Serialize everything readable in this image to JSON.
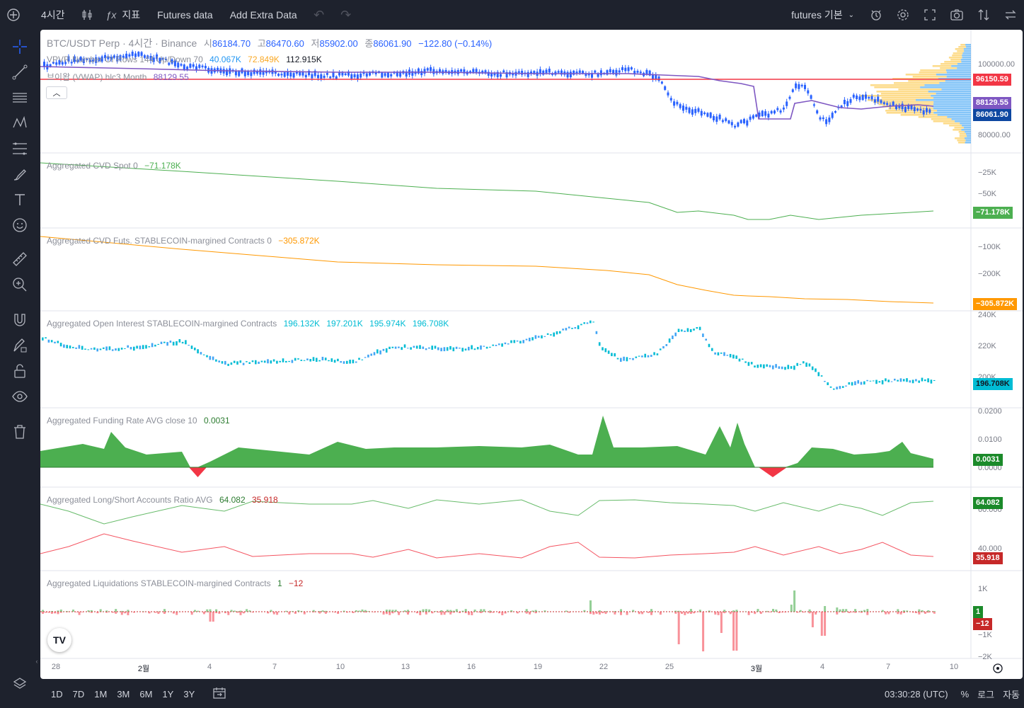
{
  "toolbar": {
    "add_symbol": "+",
    "interval": "4시간",
    "indicators_label": "지표",
    "futures_data": "Futures data",
    "add_extra_data": "Add Extra Data",
    "layout_name": "futures 기본"
  },
  "symbol": {
    "title": "BTC/USDT Perp · 4시간 · Binance",
    "open_label": "시",
    "open": "86184.70",
    "high_label": "고",
    "high": "86470.60",
    "low_label": "저",
    "low": "85902.00",
    "close_label": "종",
    "close": "86061.90",
    "change": "−122.80 (−0.14%)"
  },
  "overlays": {
    "vpvr_label": "VPVR Number Of Rows 144 Up/Down 70",
    "vpvr_up": "40.067K",
    "vpvr_down": "72.849K",
    "vpvr_total": "112.915K",
    "vwap_label": "브이왑 (VWAP) hlc3 Month",
    "vwap_value": "88129.55"
  },
  "price_axis": {
    "ticks": [
      "100000.00",
      "80000.00"
    ],
    "red_line_price": "96150.59",
    "vwap_price": "88129.55",
    "last_price": "86061.90"
  },
  "panes": {
    "cvd_spot": {
      "label": "Aggregated CVD Spot 0",
      "value": "−71.178K",
      "ticks": [
        "−25K",
        "−50K"
      ],
      "badge": "−71.178K"
    },
    "cvd_futs": {
      "label": "Aggregated CVD Futs. STABLECOIN-margined Contracts 0",
      "value": "−305.872K",
      "ticks": [
        "−100K",
        "−200K"
      ],
      "badge": "−305.872K"
    },
    "oi": {
      "label": "Aggregated Open Interest STABLECOIN-margined Contracts",
      "v1": "196.132K",
      "v2": "197.201K",
      "v3": "195.974K",
      "v4": "196.708K",
      "ticks": [
        "240K",
        "220K",
        "200K"
      ],
      "badge": "196.708K"
    },
    "funding": {
      "label": "Aggregated Funding Rate AVG close 10",
      "value": "0.0031",
      "ticks": [
        "0.0200",
        "0.0100",
        "0.0000"
      ],
      "badge": "0.0031"
    },
    "ls_ratio": {
      "label": "Aggregated Long/Short Accounts Ratio AVG",
      "long": "64.082",
      "short": "35.918",
      "ticks": [
        "60.000",
        "40.000"
      ],
      "badge_long": "64.082",
      "badge_short": "35.918"
    },
    "liq": {
      "label": "Aggregated Liquidations STABLECOIN-margined Contracts",
      "long": "1",
      "short": "−12",
      "ticks": [
        "1K",
        "−1K",
        "−2K"
      ],
      "badge_long": "1",
      "badge_short": "−12"
    }
  },
  "time_axis": [
    "28",
    "2월",
    "4",
    "7",
    "10",
    "13",
    "16",
    "19",
    "22",
    "25",
    "3월",
    "4",
    "7",
    "10"
  ],
  "bottom_bar": {
    "ranges": [
      "1D",
      "7D",
      "1M",
      "3M",
      "6M",
      "1Y",
      "3Y"
    ],
    "clock": "03:30:28 (UTC)",
    "percent": "%",
    "log": "로그",
    "auto": "자동"
  },
  "colors": {
    "up_candle": "#2962ff",
    "vwap": "#7e57c2",
    "red_line": "#f23645",
    "cvd_spot": "#4caf50",
    "cvd_futs": "#ff9800",
    "oi": "#00bcd4",
    "funding_pos": "#4caf50",
    "funding_neg": "#f23645",
    "long": "#4caf50",
    "short": "#f23645"
  }
}
